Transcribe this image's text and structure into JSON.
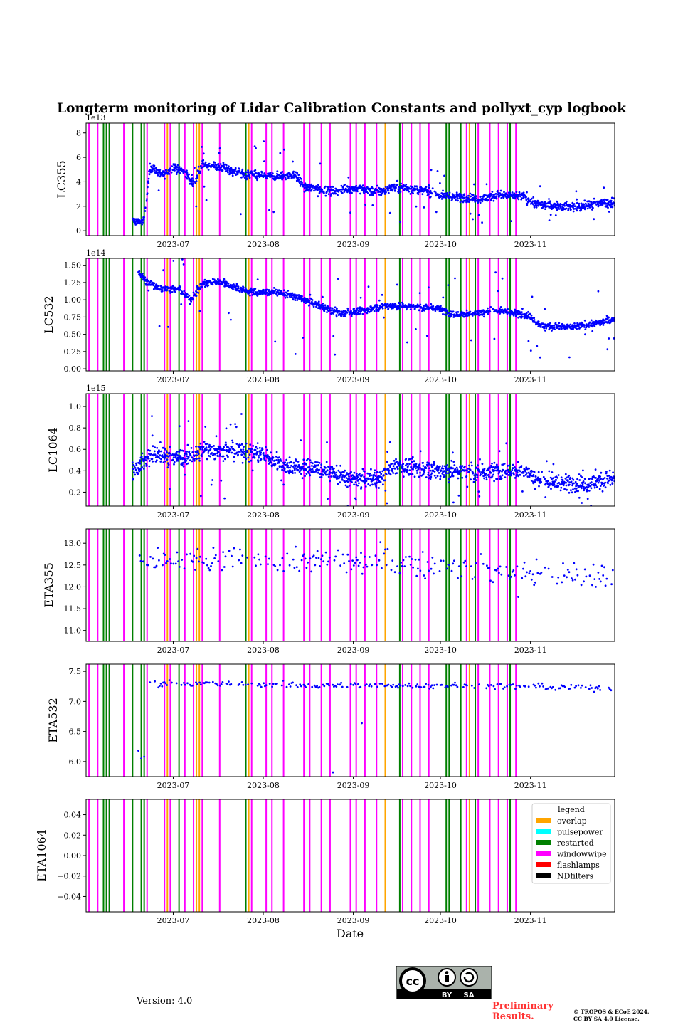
{
  "figure": {
    "title": "Longterm monitoring of Lidar Calibration Constants and pollyxt_cyp logbook",
    "xlabel": "Date",
    "version_text": "Version: 4.0",
    "preliminary_line1": "Preliminary",
    "preliminary_line2": "Results.",
    "copyright_line1": "© TROPOS & ECoE 2024.",
    "copyright_line2": "CC BY SA 4.0 License.",
    "license_badge": {
      "label_by": "BY",
      "label_sa": "SA",
      "icon": "cc-by-sa-icon"
    }
  },
  "chart_data": {
    "type": "scatter",
    "x_axis": {
      "range": [
        "2023-06-01",
        "2023-11-30"
      ],
      "ticks": [
        "2023-07",
        "2023-08",
        "2023-09",
        "2023-10",
        "2023-11"
      ]
    },
    "logbook": {
      "legend_title": "legend",
      "legend_position": "upper right of last panel",
      "categories": [
        {
          "name": "overlap",
          "color": "#ffa500"
        },
        {
          "name": "pulsepower",
          "color": "#00ffff"
        },
        {
          "name": "restarted",
          "color": "#008000"
        },
        {
          "name": "windowwipe",
          "color": "#ff00ff"
        },
        {
          "name": "flashlamps",
          "color": "#ff0000"
        },
        {
          "name": "NDfilters",
          "color": "#000000"
        }
      ],
      "events": {
        "windowwipe": [
          "2023-06-02",
          "2023-06-05",
          "2023-06-09",
          "2023-06-14",
          "2023-06-22",
          "2023-06-28",
          "2023-06-30",
          "2023-07-05",
          "2023-07-08",
          "2023-07-11",
          "2023-07-17",
          "2023-07-28",
          "2023-08-02",
          "2023-08-04",
          "2023-08-08",
          "2023-08-15",
          "2023-08-17",
          "2023-08-21",
          "2023-08-24",
          "2023-08-31",
          "2023-09-02",
          "2023-09-05",
          "2023-09-09",
          "2023-09-18",
          "2023-09-21",
          "2023-09-24",
          "2023-09-27",
          "2023-10-10",
          "2023-10-14",
          "2023-10-18",
          "2023-10-21",
          "2023-10-24",
          "2023-10-27"
        ],
        "restarted": [
          "2023-06-07",
          "2023-06-08",
          "2023-06-09",
          "2023-06-17",
          "2023-06-20",
          "2023-06-21",
          "2023-07-03",
          "2023-07-26",
          "2023-09-17",
          "2023-10-03",
          "2023-10-04",
          "2023-10-08",
          "2023-10-13",
          "2023-10-25"
        ],
        "overlap": [
          "2023-06-29",
          "2023-07-09",
          "2023-07-10",
          "2023-07-27",
          "2023-09-12",
          "2023-10-11"
        ]
      }
    },
    "panels": [
      {
        "ylabel": "LC355",
        "exponent": "1e13",
        "ylim": [
          -0.4,
          8.8
        ],
        "yticks": [
          0,
          2,
          4,
          6,
          8
        ],
        "tick_labels": [
          "0",
          "2",
          "4",
          "6",
          "8"
        ],
        "series_color": "#0000ff",
        "trend": [
          [
            "2023-06-17",
            0.8
          ],
          [
            "2023-06-21",
            0.8
          ],
          [
            "2023-06-23",
            5.2
          ],
          [
            "2023-06-28",
            4.6
          ],
          [
            "2023-07-01",
            5.2
          ],
          [
            "2023-07-05",
            4.8
          ],
          [
            "2023-07-08",
            3.8
          ],
          [
            "2023-07-11",
            5.4
          ],
          [
            "2023-07-18",
            5.2
          ],
          [
            "2023-07-25",
            4.6
          ],
          [
            "2023-08-05",
            4.4
          ],
          [
            "2023-08-12",
            4.6
          ],
          [
            "2023-08-15",
            3.6
          ],
          [
            "2023-08-25",
            3.2
          ],
          [
            "2023-09-01",
            3.5
          ],
          [
            "2023-09-10",
            3.2
          ],
          [
            "2023-09-15",
            3.6
          ],
          [
            "2023-09-25",
            3.3
          ],
          [
            "2023-10-01",
            2.9
          ],
          [
            "2023-10-05",
            2.8
          ],
          [
            "2023-10-15",
            2.6
          ],
          [
            "2023-10-20",
            2.9
          ],
          [
            "2023-10-30",
            2.8
          ],
          [
            "2023-11-03",
            2.2
          ],
          [
            "2023-11-12",
            2.0
          ],
          [
            "2023-11-18",
            1.9
          ],
          [
            "2023-11-24",
            2.3
          ],
          [
            "2023-11-30",
            2.2
          ]
        ],
        "spread": 0.35,
        "outlier_rate": 0.04
      },
      {
        "ylabel": "LC532",
        "exponent": "1e14",
        "ylim": [
          -0.03,
          1.6
        ],
        "yticks": [
          0,
          0.25,
          0.5,
          0.75,
          1.0,
          1.25,
          1.5
        ],
        "tick_labels": [
          "0.00",
          "0.25",
          "0.50",
          "0.75",
          "1.00",
          "1.25",
          "1.50"
        ],
        "series_color": "#0000ff",
        "trend": [
          [
            "2023-06-19",
            1.42
          ],
          [
            "2023-06-22",
            1.25
          ],
          [
            "2023-06-26",
            1.18
          ],
          [
            "2023-07-03",
            1.15
          ],
          [
            "2023-07-07",
            1.0
          ],
          [
            "2023-07-11",
            1.22
          ],
          [
            "2023-07-17",
            1.27
          ],
          [
            "2023-07-24",
            1.15
          ],
          [
            "2023-07-30",
            1.1
          ],
          [
            "2023-08-05",
            1.12
          ],
          [
            "2023-08-12",
            1.05
          ],
          [
            "2023-08-20",
            0.92
          ],
          [
            "2023-08-28",
            0.8
          ],
          [
            "2023-09-05",
            0.85
          ],
          [
            "2023-09-12",
            0.92
          ],
          [
            "2023-09-20",
            0.9
          ],
          [
            "2023-09-30",
            0.88
          ],
          [
            "2023-10-05",
            0.78
          ],
          [
            "2023-10-12",
            0.8
          ],
          [
            "2023-10-20",
            0.85
          ],
          [
            "2023-10-31",
            0.78
          ],
          [
            "2023-11-05",
            0.62
          ],
          [
            "2023-11-15",
            0.6
          ],
          [
            "2023-11-22",
            0.65
          ],
          [
            "2023-11-30",
            0.72
          ]
        ],
        "spread": 0.05,
        "outlier_rate": 0.04
      },
      {
        "ylabel": "LC1064",
        "exponent": "1e15",
        "ylim": [
          0.07,
          1.12
        ],
        "yticks": [
          0.2,
          0.4,
          0.6,
          0.8,
          1.0
        ],
        "tick_labels": [
          "0.2",
          "0.4",
          "0.6",
          "0.8",
          "1.0"
        ],
        "series_color": "#0000ff",
        "trend": [
          [
            "2023-06-17",
            0.4
          ],
          [
            "2023-06-24",
            0.55
          ],
          [
            "2023-07-05",
            0.52
          ],
          [
            "2023-07-12",
            0.6
          ],
          [
            "2023-07-25",
            0.58
          ],
          [
            "2023-08-01",
            0.55
          ],
          [
            "2023-08-10",
            0.43
          ],
          [
            "2023-08-20",
            0.42
          ],
          [
            "2023-09-01",
            0.32
          ],
          [
            "2023-09-10",
            0.33
          ],
          [
            "2023-09-15",
            0.45
          ],
          [
            "2023-09-25",
            0.42
          ],
          [
            "2023-10-05",
            0.4
          ],
          [
            "2023-10-15",
            0.38
          ],
          [
            "2023-10-30",
            0.4
          ],
          [
            "2023-11-05",
            0.3
          ],
          [
            "2023-11-20",
            0.28
          ],
          [
            "2023-11-30",
            0.32
          ]
        ],
        "spread": 0.08,
        "outlier_rate": 0.05
      },
      {
        "ylabel": "ETA355",
        "exponent": "",
        "ylim": [
          10.75,
          13.33
        ],
        "yticks": [
          11.0,
          11.5,
          12.0,
          12.5,
          13.0
        ],
        "tick_labels": [
          "11.0",
          "11.5",
          "12.0",
          "12.5",
          "13.0"
        ],
        "series_color": "#0000ff",
        "trend": [
          [
            "2023-06-19",
            12.5
          ],
          [
            "2023-07-15",
            12.6
          ],
          [
            "2023-08-15",
            12.6
          ],
          [
            "2023-09-15",
            12.6
          ],
          [
            "2023-10-15",
            12.4
          ],
          [
            "2023-11-10",
            12.3
          ],
          [
            "2023-11-30",
            12.2
          ]
        ],
        "spread": 0.3,
        "outlier_rate": 0.02,
        "sparse": true
      },
      {
        "ylabel": "ETA532",
        "exponent": "",
        "ylim": [
          5.75,
          7.62
        ],
        "yticks": [
          6.0,
          6.5,
          7.0,
          7.5
        ],
        "tick_labels": [
          "6.0",
          "6.5",
          "7.0",
          "7.5"
        ],
        "series_color": "#0000ff",
        "trend": [
          [
            "2023-06-23",
            7.3
          ],
          [
            "2023-08-01",
            7.28
          ],
          [
            "2023-09-01",
            7.26
          ],
          [
            "2023-10-01",
            7.27
          ],
          [
            "2023-11-01",
            7.24
          ],
          [
            "2023-11-30",
            7.22
          ]
        ],
        "spread": 0.05,
        "outlier_rate": 0.02,
        "sparse": true,
        "extra_points": [
          [
            "2023-06-19",
            6.18
          ],
          [
            "2023-06-20",
            6.05
          ],
          [
            "2023-06-21",
            6.08
          ],
          [
            "2023-08-25",
            5.82
          ]
        ]
      },
      {
        "ylabel": "ETA1064",
        "exponent": "",
        "ylim": [
          -0.055,
          0.055
        ],
        "yticks": [
          -0.04,
          -0.02,
          0.0,
          0.02,
          0.04
        ],
        "tick_labels": [
          "−0.04",
          "−0.02",
          "0.00",
          "0.02",
          "0.04"
        ],
        "series_color": "#0000ff",
        "trend": [],
        "spread": 0,
        "outlier_rate": 0,
        "show_legend": true
      }
    ]
  }
}
